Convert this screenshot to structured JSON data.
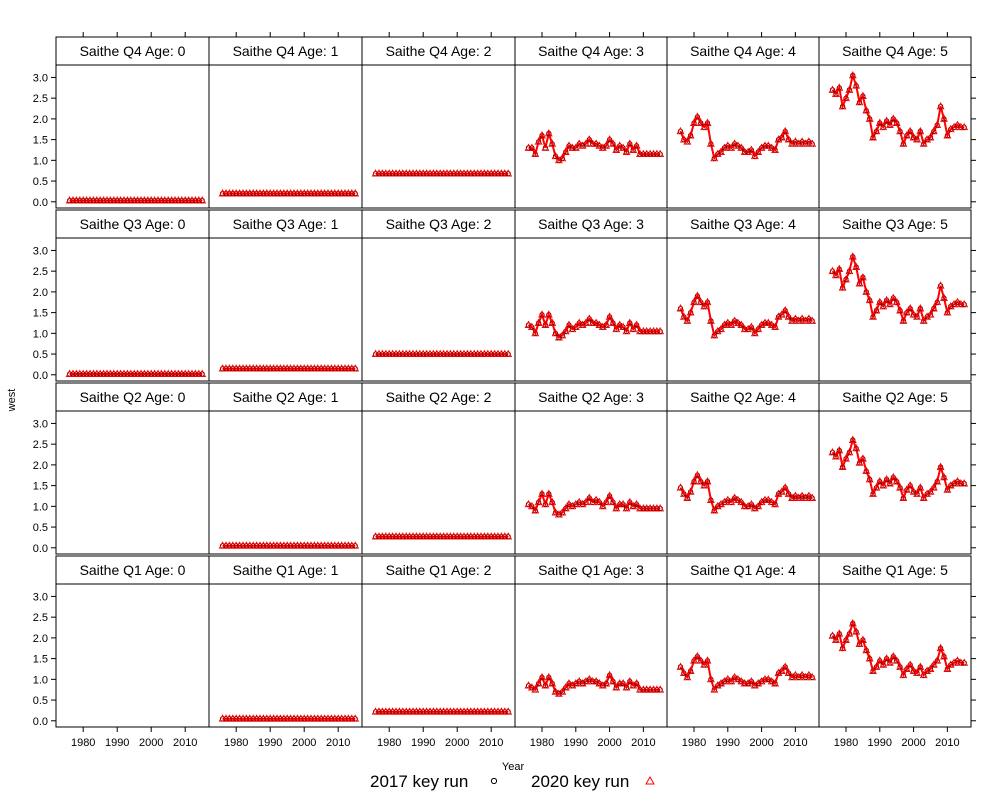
{
  "chart_data": {
    "type": "line",
    "xlabel": "Year",
    "ylabel": "west",
    "xlim": [
      1972,
      2017
    ],
    "ylim": [
      -0.15,
      3.3
    ],
    "x_ticks": [
      1980,
      1990,
      2000,
      2010
    ],
    "y_ticks": [
      0.0,
      0.5,
      1.0,
      1.5,
      2.0,
      2.5,
      3.0
    ],
    "y_tick_labels": [
      "0.0",
      "0.5",
      "1.0",
      "1.5",
      "2.0",
      "2.5",
      "3.0"
    ],
    "grid": false,
    "legend": {
      "placement": "bottom",
      "entries": [
        {
          "label": "2017 key run",
          "marker": "circle",
          "color": "#000000"
        },
        {
          "label": "2020 key run",
          "marker": "triangle",
          "color": "#ff0000"
        }
      ]
    },
    "colors": {
      "line_2020": "#ff0000",
      "line_2017": "#000000"
    },
    "years": [
      1976,
      1977,
      1978,
      1979,
      1980,
      1981,
      1982,
      1983,
      1984,
      1985,
      1986,
      1987,
      1988,
      1989,
      1990,
      1991,
      1992,
      1993,
      1994,
      1995,
      1996,
      1997,
      1998,
      1999,
      2000,
      2001,
      2002,
      2003,
      2004,
      2005,
      2006,
      2007,
      2008,
      2009,
      2010,
      2011,
      2012,
      2013,
      2014,
      2015
    ],
    "panels": [
      {
        "label": "Saithe Q4 Age: 0",
        "values": [
          0.03,
          0.03,
          0.03,
          0.03,
          0.03,
          0.03,
          0.03,
          0.03,
          0.03,
          0.03,
          0.03,
          0.03,
          0.03,
          0.03,
          0.03,
          0.03,
          0.03,
          0.03,
          0.03,
          0.03,
          0.03,
          0.03,
          0.03,
          0.03,
          0.03,
          0.03,
          0.03,
          0.03,
          0.03,
          0.03,
          0.03,
          0.03,
          0.03,
          0.03,
          0.03,
          0.03,
          0.03,
          0.03,
          0.03,
          0.03
        ]
      },
      {
        "label": "Saithe Q4 Age: 1",
        "values": [
          0.2,
          0.2,
          0.2,
          0.2,
          0.2,
          0.2,
          0.2,
          0.2,
          0.2,
          0.2,
          0.2,
          0.2,
          0.2,
          0.2,
          0.2,
          0.2,
          0.2,
          0.2,
          0.2,
          0.2,
          0.2,
          0.2,
          0.2,
          0.2,
          0.2,
          0.2,
          0.2,
          0.2,
          0.2,
          0.2,
          0.2,
          0.2,
          0.2,
          0.2,
          0.2,
          0.2,
          0.2,
          0.2,
          0.2,
          0.2
        ]
      },
      {
        "label": "Saithe Q4 Age: 2",
        "values": [
          0.68,
          0.68,
          0.68,
          0.68,
          0.68,
          0.68,
          0.68,
          0.68,
          0.68,
          0.68,
          0.68,
          0.68,
          0.68,
          0.68,
          0.68,
          0.68,
          0.68,
          0.68,
          0.68,
          0.68,
          0.68,
          0.68,
          0.68,
          0.68,
          0.68,
          0.68,
          0.68,
          0.68,
          0.68,
          0.68,
          0.68,
          0.68,
          0.68,
          0.68,
          0.68,
          0.68,
          0.68,
          0.68,
          0.68,
          0.68
        ]
      },
      {
        "label": "Saithe Q4 Age: 3",
        "values": [
          1.3,
          1.3,
          1.15,
          1.45,
          1.6,
          1.3,
          1.65,
          1.4,
          1.1,
          1.0,
          1.05,
          1.2,
          1.35,
          1.3,
          1.3,
          1.4,
          1.35,
          1.4,
          1.5,
          1.4,
          1.4,
          1.35,
          1.3,
          1.35,
          1.5,
          1.4,
          1.25,
          1.35,
          1.3,
          1.2,
          1.4,
          1.25,
          1.35,
          1.15,
          1.15,
          1.15,
          1.15,
          1.15,
          1.15,
          1.15
        ]
      },
      {
        "label": "Saithe Q4 Age: 4",
        "values": [
          1.7,
          1.5,
          1.45,
          1.6,
          1.9,
          2.05,
          1.9,
          1.8,
          1.9,
          1.4,
          1.05,
          1.15,
          1.2,
          1.3,
          1.35,
          1.3,
          1.4,
          1.35,
          1.3,
          1.2,
          1.2,
          1.25,
          1.1,
          1.2,
          1.3,
          1.35,
          1.35,
          1.3,
          1.25,
          1.5,
          1.55,
          1.7,
          1.5,
          1.4,
          1.45,
          1.4,
          1.45,
          1.4,
          1.45,
          1.4
        ]
      },
      {
        "label": "Saithe Q4 Age: 5",
        "values": [
          2.7,
          2.6,
          2.75,
          2.3,
          2.5,
          2.7,
          3.05,
          2.8,
          2.4,
          2.55,
          2.2,
          2.0,
          1.55,
          1.7,
          1.9,
          1.8,
          1.95,
          1.85,
          2.0,
          1.9,
          1.7,
          1.4,
          1.6,
          1.7,
          1.55,
          1.5,
          1.7,
          1.4,
          1.5,
          1.55,
          1.7,
          1.85,
          2.3,
          2.0,
          1.6,
          1.75,
          1.8,
          1.85,
          1.8,
          1.8
        ]
      },
      {
        "label": "Saithe Q3 Age: 0",
        "values": [
          0.02,
          0.02,
          0.02,
          0.02,
          0.02,
          0.02,
          0.02,
          0.02,
          0.02,
          0.02,
          0.02,
          0.02,
          0.02,
          0.02,
          0.02,
          0.02,
          0.02,
          0.02,
          0.02,
          0.02,
          0.02,
          0.02,
          0.02,
          0.02,
          0.02,
          0.02,
          0.02,
          0.02,
          0.02,
          0.02,
          0.02,
          0.02,
          0.02,
          0.02,
          0.02,
          0.02,
          0.02,
          0.02,
          0.02,
          0.02
        ]
      },
      {
        "label": "Saithe Q3 Age: 1",
        "values": [
          0.15,
          0.15,
          0.15,
          0.15,
          0.15,
          0.15,
          0.15,
          0.15,
          0.15,
          0.15,
          0.15,
          0.15,
          0.15,
          0.15,
          0.15,
          0.15,
          0.15,
          0.15,
          0.15,
          0.15,
          0.15,
          0.15,
          0.15,
          0.15,
          0.15,
          0.15,
          0.15,
          0.15,
          0.15,
          0.15,
          0.15,
          0.15,
          0.15,
          0.15,
          0.15,
          0.15,
          0.15,
          0.15,
          0.15,
          0.15
        ]
      },
      {
        "label": "Saithe Q3 Age: 2",
        "values": [
          0.5,
          0.5,
          0.5,
          0.5,
          0.5,
          0.5,
          0.5,
          0.5,
          0.5,
          0.5,
          0.5,
          0.5,
          0.5,
          0.5,
          0.5,
          0.5,
          0.5,
          0.5,
          0.5,
          0.5,
          0.5,
          0.5,
          0.5,
          0.5,
          0.5,
          0.5,
          0.5,
          0.5,
          0.5,
          0.5,
          0.5,
          0.5,
          0.5,
          0.5,
          0.5,
          0.5,
          0.5,
          0.5,
          0.5,
          0.5
        ]
      },
      {
        "label": "Saithe Q3 Age: 3",
        "values": [
          1.2,
          1.15,
          1.0,
          1.25,
          1.45,
          1.2,
          1.45,
          1.25,
          1.0,
          0.9,
          0.95,
          1.05,
          1.2,
          1.1,
          1.15,
          1.25,
          1.2,
          1.25,
          1.35,
          1.25,
          1.25,
          1.2,
          1.15,
          1.2,
          1.4,
          1.25,
          1.1,
          1.2,
          1.15,
          1.05,
          1.25,
          1.1,
          1.2,
          1.05,
          1.05,
          1.05,
          1.05,
          1.05,
          1.05,
          1.05
        ]
      },
      {
        "label": "Saithe Q3 Age: 4",
        "values": [
          1.6,
          1.4,
          1.3,
          1.5,
          1.75,
          1.9,
          1.75,
          1.65,
          1.75,
          1.3,
          0.95,
          1.05,
          1.1,
          1.2,
          1.25,
          1.2,
          1.3,
          1.25,
          1.2,
          1.1,
          1.1,
          1.15,
          1.0,
          1.1,
          1.2,
          1.25,
          1.25,
          1.2,
          1.15,
          1.4,
          1.45,
          1.55,
          1.4,
          1.3,
          1.35,
          1.3,
          1.35,
          1.3,
          1.35,
          1.3
        ]
      },
      {
        "label": "Saithe Q3 Age: 5",
        "values": [
          2.5,
          2.4,
          2.55,
          2.1,
          2.3,
          2.5,
          2.85,
          2.6,
          2.2,
          2.35,
          2.0,
          1.8,
          1.4,
          1.55,
          1.75,
          1.65,
          1.8,
          1.7,
          1.85,
          1.75,
          1.55,
          1.3,
          1.5,
          1.6,
          1.45,
          1.4,
          1.6,
          1.3,
          1.4,
          1.45,
          1.6,
          1.75,
          2.15,
          1.85,
          1.5,
          1.65,
          1.7,
          1.75,
          1.7,
          1.7
        ]
      },
      {
        "label": "Saithe Q2 Age: 0",
        "values": []
      },
      {
        "label": "Saithe Q2 Age: 1",
        "values": [
          0.05,
          0.05,
          0.05,
          0.05,
          0.05,
          0.05,
          0.05,
          0.05,
          0.05,
          0.05,
          0.05,
          0.05,
          0.05,
          0.05,
          0.05,
          0.05,
          0.05,
          0.05,
          0.05,
          0.05,
          0.05,
          0.05,
          0.05,
          0.05,
          0.05,
          0.05,
          0.05,
          0.05,
          0.05,
          0.05,
          0.05,
          0.05,
          0.05,
          0.05,
          0.05,
          0.05,
          0.05,
          0.05,
          0.05,
          0.05
        ]
      },
      {
        "label": "Saithe Q2 Age: 2",
        "values": [
          0.27,
          0.27,
          0.27,
          0.27,
          0.27,
          0.27,
          0.27,
          0.27,
          0.27,
          0.27,
          0.27,
          0.27,
          0.27,
          0.27,
          0.27,
          0.27,
          0.27,
          0.27,
          0.27,
          0.27,
          0.27,
          0.27,
          0.27,
          0.27,
          0.27,
          0.27,
          0.27,
          0.27,
          0.27,
          0.27,
          0.27,
          0.27,
          0.27,
          0.27,
          0.27,
          0.27,
          0.27,
          0.27,
          0.27,
          0.27
        ]
      },
      {
        "label": "Saithe Q2 Age: 3",
        "values": [
          1.05,
          1.0,
          0.9,
          1.1,
          1.3,
          1.05,
          1.3,
          1.1,
          0.85,
          0.8,
          0.85,
          0.95,
          1.05,
          1.0,
          1.05,
          1.1,
          1.05,
          1.1,
          1.2,
          1.1,
          1.15,
          1.1,
          1.0,
          1.1,
          1.25,
          1.1,
          0.95,
          1.05,
          1.05,
          0.95,
          1.1,
          1.0,
          1.05,
          0.95,
          0.95,
          0.95,
          0.95,
          0.95,
          0.95,
          0.95
        ]
      },
      {
        "label": "Saithe Q2 Age: 4",
        "values": [
          1.45,
          1.3,
          1.2,
          1.35,
          1.6,
          1.75,
          1.6,
          1.5,
          1.6,
          1.15,
          0.9,
          1.0,
          1.05,
          1.1,
          1.15,
          1.1,
          1.2,
          1.15,
          1.1,
          1.0,
          1.0,
          1.05,
          0.95,
          1.0,
          1.1,
          1.15,
          1.15,
          1.1,
          1.05,
          1.3,
          1.35,
          1.45,
          1.3,
          1.2,
          1.25,
          1.2,
          1.25,
          1.2,
          1.25,
          1.2
        ]
      },
      {
        "label": "Saithe Q2 Age: 5",
        "values": [
          2.3,
          2.2,
          2.35,
          1.95,
          2.15,
          2.3,
          2.6,
          2.4,
          2.05,
          2.15,
          1.85,
          1.65,
          1.3,
          1.45,
          1.6,
          1.5,
          1.65,
          1.55,
          1.7,
          1.6,
          1.45,
          1.2,
          1.4,
          1.5,
          1.35,
          1.3,
          1.45,
          1.2,
          1.3,
          1.35,
          1.45,
          1.6,
          1.95,
          1.7,
          1.4,
          1.5,
          1.55,
          1.6,
          1.55,
          1.55
        ]
      },
      {
        "label": "Saithe Q1 Age: 0",
        "values": []
      },
      {
        "label": "Saithe Q1 Age: 1",
        "values": [
          0.05,
          0.05,
          0.05,
          0.05,
          0.05,
          0.05,
          0.05,
          0.05,
          0.05,
          0.05,
          0.05,
          0.05,
          0.05,
          0.05,
          0.05,
          0.05,
          0.05,
          0.05,
          0.05,
          0.05,
          0.05,
          0.05,
          0.05,
          0.05,
          0.05,
          0.05,
          0.05,
          0.05,
          0.05,
          0.05,
          0.05,
          0.05,
          0.05,
          0.05,
          0.05,
          0.05,
          0.05,
          0.05,
          0.05,
          0.05
        ]
      },
      {
        "label": "Saithe Q1 Age: 2",
        "values": [
          0.22,
          0.22,
          0.22,
          0.22,
          0.22,
          0.22,
          0.22,
          0.22,
          0.22,
          0.22,
          0.22,
          0.22,
          0.22,
          0.22,
          0.22,
          0.22,
          0.22,
          0.22,
          0.22,
          0.22,
          0.22,
          0.22,
          0.22,
          0.22,
          0.22,
          0.22,
          0.22,
          0.22,
          0.22,
          0.22,
          0.22,
          0.22,
          0.22,
          0.22,
          0.22,
          0.22,
          0.22,
          0.22,
          0.22,
          0.22
        ]
      },
      {
        "label": "Saithe Q1 Age: 3",
        "values": [
          0.85,
          0.8,
          0.75,
          0.9,
          1.05,
          0.85,
          1.05,
          0.9,
          0.7,
          0.65,
          0.7,
          0.8,
          0.9,
          0.85,
          0.9,
          0.95,
          0.9,
          0.95,
          1.0,
          0.95,
          0.95,
          0.9,
          0.85,
          0.9,
          1.1,
          0.95,
          0.8,
          0.9,
          0.9,
          0.8,
          0.95,
          0.85,
          0.9,
          0.75,
          0.75,
          0.75,
          0.75,
          0.75,
          0.75,
          0.75
        ]
      },
      {
        "label": "Saithe Q1 Age: 4",
        "values": [
          1.3,
          1.15,
          1.05,
          1.2,
          1.45,
          1.55,
          1.45,
          1.35,
          1.45,
          1.0,
          0.75,
          0.85,
          0.9,
          0.95,
          1.0,
          0.95,
          1.05,
          1.0,
          0.95,
          0.9,
          0.9,
          0.95,
          0.85,
          0.9,
          0.95,
          1.0,
          1.0,
          0.95,
          0.9,
          1.15,
          1.2,
          1.3,
          1.15,
          1.05,
          1.1,
          1.05,
          1.1,
          1.05,
          1.1,
          1.05
        ]
      },
      {
        "label": "Saithe Q1 Age: 5",
        "values": [
          2.05,
          1.95,
          2.1,
          1.75,
          1.95,
          2.1,
          2.35,
          2.15,
          1.85,
          1.95,
          1.7,
          1.5,
          1.2,
          1.3,
          1.45,
          1.35,
          1.5,
          1.4,
          1.55,
          1.45,
          1.3,
          1.1,
          1.25,
          1.35,
          1.2,
          1.15,
          1.3,
          1.1,
          1.2,
          1.25,
          1.35,
          1.45,
          1.75,
          1.55,
          1.25,
          1.35,
          1.4,
          1.45,
          1.4,
          1.4
        ]
      }
    ]
  }
}
